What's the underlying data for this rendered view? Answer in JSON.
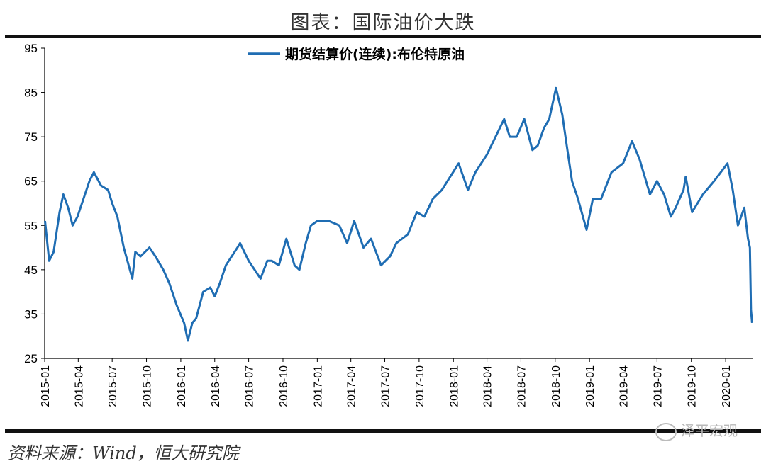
{
  "page": {
    "title": "图表：国际油价大跌",
    "source": "资料来源：Wind，恒大研究院",
    "watermark": "泽平宏观"
  },
  "colors": {
    "series": "#1f6db3",
    "axis": "#000000",
    "text": "#000000"
  },
  "chart_data": {
    "type": "line",
    "title": "图表：国际油价大跌",
    "ylim": [
      25,
      95
    ],
    "yticks": [
      25,
      35,
      45,
      55,
      65,
      75,
      85,
      95
    ],
    "xticks": [
      "2015-01",
      "2015-04",
      "2015-07",
      "2015-10",
      "2016-01",
      "2016-04",
      "2016-07",
      "2016-10",
      "2017-01",
      "2017-04",
      "2017-07",
      "2017-10",
      "2018-01",
      "2018-04",
      "2018-07",
      "2018-10",
      "2019-01",
      "2019-04",
      "2019-07",
      "2019-10",
      "2020-01"
    ],
    "legend": "top-center",
    "grid": false,
    "series": [
      {
        "name": "期货结算价(连续):布伦特原油",
        "x": [
          "2015-01-02",
          "2015-01-13",
          "2015-01-25",
          "2015-02-10",
          "2015-02-20",
          "2015-03-05",
          "2015-03-17",
          "2015-03-30",
          "2015-04-15",
          "2015-05-01",
          "2015-05-13",
          "2015-06-01",
          "2015-06-20",
          "2015-07-01",
          "2015-07-15",
          "2015-08-01",
          "2015-08-24",
          "2015-09-01",
          "2015-09-15",
          "2015-10-09",
          "2015-10-25",
          "2015-11-15",
          "2015-12-01",
          "2015-12-21",
          "2016-01-10",
          "2016-01-20",
          "2016-02-01",
          "2016-02-11",
          "2016-03-01",
          "2016-03-20",
          "2016-04-01",
          "2016-04-15",
          "2016-05-01",
          "2016-06-01",
          "2016-06-08",
          "2016-07-01",
          "2016-08-02",
          "2016-08-20",
          "2016-09-01",
          "2016-09-20",
          "2016-10-10",
          "2016-11-01",
          "2016-11-14",
          "2016-12-01",
          "2016-12-15",
          "2017-01-01",
          "2017-02-01",
          "2017-03-01",
          "2017-03-22",
          "2017-04-10",
          "2017-05-05",
          "2017-05-25",
          "2017-06-21",
          "2017-07-15",
          "2017-08-01",
          "2017-09-01",
          "2017-09-25",
          "2017-10-15",
          "2017-11-07",
          "2017-12-01",
          "2018-01-15",
          "2018-02-09",
          "2018-03-01",
          "2018-04-01",
          "2018-05-17",
          "2018-06-01",
          "2018-06-20",
          "2018-07-10",
          "2018-08-01",
          "2018-08-15",
          "2018-09-01",
          "2018-09-15",
          "2018-10-03",
          "2018-10-20",
          "2018-11-01",
          "2018-11-15",
          "2018-12-01",
          "2018-12-24",
          "2019-01-10",
          "2019-02-01",
          "2019-03-01",
          "2019-04-01",
          "2019-04-25",
          "2019-05-15",
          "2019-06-12",
          "2019-07-01",
          "2019-07-20",
          "2019-08-07",
          "2019-08-20",
          "2019-09-10",
          "2019-09-16",
          "2019-10-03",
          "2019-11-01",
          "2019-12-01",
          "2020-01-06",
          "2020-01-20",
          "2020-02-03",
          "2020-02-20",
          "2020-03-01",
          "2020-03-06",
          "2020-03-09",
          "2020-03-12"
        ],
        "values": [
          56,
          47,
          49,
          58,
          62,
          59,
          55,
          57,
          61,
          65,
          67,
          64,
          63,
          60,
          57,
          50,
          43,
          49,
          48,
          50,
          48,
          45,
          42,
          37,
          33,
          29,
          33,
          34,
          40,
          41,
          39,
          42,
          46,
          50,
          51,
          47,
          43,
          47,
          47,
          46,
          52,
          46,
          45,
          51,
          55,
          56,
          56,
          55,
          51,
          56,
          50,
          52,
          46,
          48,
          51,
          53,
          58,
          57,
          61,
          63,
          69,
          63,
          67,
          71,
          79,
          75,
          75,
          79,
          72,
          73,
          77,
          79,
          86,
          80,
          73,
          65,
          61,
          54,
          61,
          61,
          67,
          69,
          74,
          70,
          62,
          65,
          62,
          57,
          59,
          63,
          66,
          58,
          62,
          65,
          69,
          63,
          55,
          59,
          52,
          50,
          36,
          33
        ]
      }
    ]
  }
}
